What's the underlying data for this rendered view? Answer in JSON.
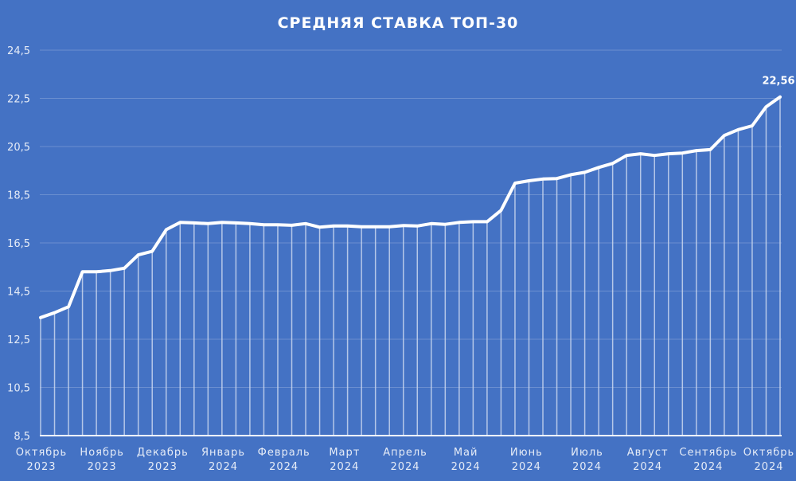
{
  "chart_data": {
    "type": "line",
    "title": "СРЕДНЯЯ СТАВКА ТОП-30",
    "xlabel": "",
    "ylabel": "",
    "ylim": [
      8.5,
      24.5
    ],
    "yticks": [
      "8,5",
      "10,5",
      "12,5",
      "14,5",
      "16,5",
      "18,5",
      "20,5",
      "22,5",
      "24,5"
    ],
    "ytick_values": [
      8.5,
      10.5,
      12.5,
      14.5,
      16.5,
      18.5,
      20.5,
      22.5,
      24.5
    ],
    "grid": true,
    "drop_lines": true,
    "legend": "none",
    "x_month_labels": [
      {
        "month": "Октябрь",
        "year": "2023"
      },
      {
        "month": "Ноябрь",
        "year": "2023"
      },
      {
        "month": "Декабрь",
        "year": "2023"
      },
      {
        "month": "Январь",
        "year": "2024"
      },
      {
        "month": "Февраль",
        "year": "2024"
      },
      {
        "month": "Март",
        "year": "2024"
      },
      {
        "month": "Апрель",
        "year": "2024"
      },
      {
        "month": "Май",
        "year": "2024"
      },
      {
        "month": "Июнь",
        "year": "2024"
      },
      {
        "month": "Июль",
        "year": "2024"
      },
      {
        "month": "Август",
        "year": "2024"
      },
      {
        "month": "Сентябрь",
        "year": "2024"
      },
      {
        "month": "Октябрь",
        "year": "2024"
      }
    ],
    "series": [
      {
        "name": "Средняя ставка ТОП-30",
        "values": [
          13.4,
          13.6,
          13.85,
          15.3,
          15.3,
          15.35,
          15.45,
          16.0,
          16.15,
          17.05,
          17.35,
          17.33,
          17.3,
          17.35,
          17.33,
          17.3,
          17.25,
          17.25,
          17.23,
          17.3,
          17.15,
          17.2,
          17.2,
          17.17,
          17.17,
          17.17,
          17.22,
          17.2,
          17.3,
          17.27,
          17.35,
          17.38,
          17.38,
          17.85,
          18.98,
          19.08,
          19.15,
          19.17,
          19.33,
          19.43,
          19.63,
          19.8,
          20.13,
          20.2,
          20.13,
          20.2,
          20.23,
          20.33,
          20.37,
          20.96,
          21.2,
          21.36,
          22.15,
          22.56
        ]
      }
    ],
    "annotations": [
      {
        "point_index": 53,
        "text": "22,56"
      }
    ]
  },
  "colors": {
    "background": "#4472c4",
    "line": "#ffffff",
    "grid": "#6b8fd0",
    "text": "#e6ecf7"
  }
}
